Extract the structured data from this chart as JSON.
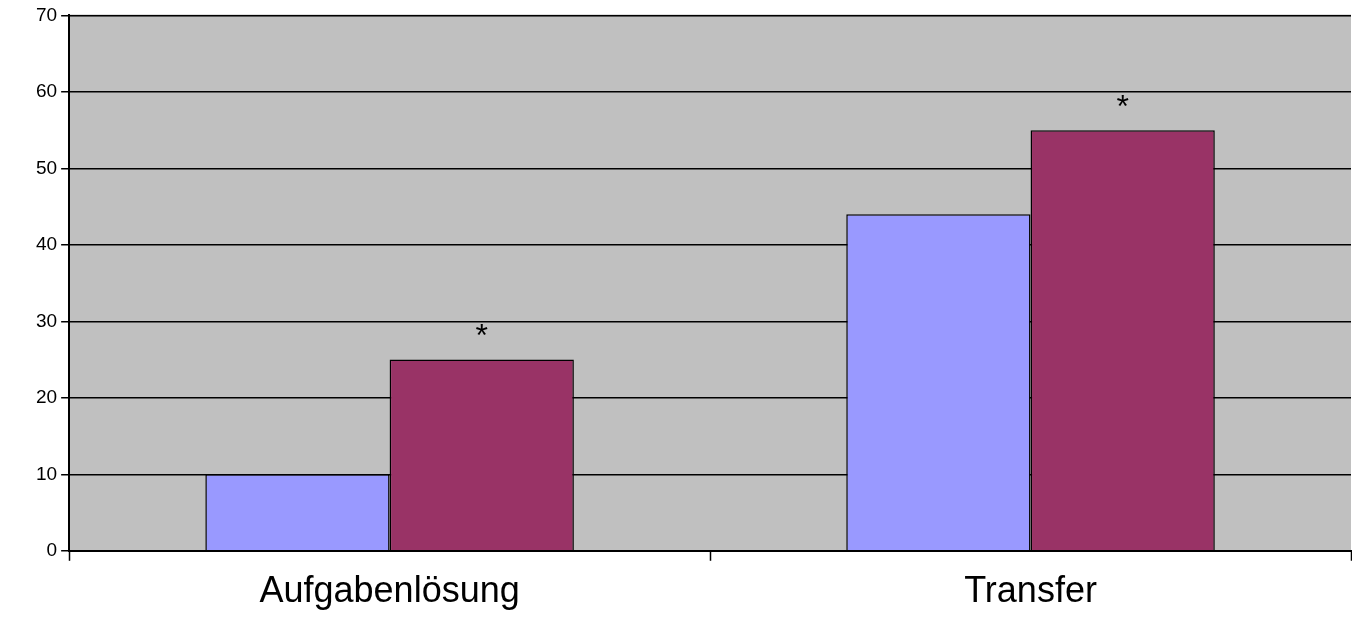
{
  "chart_data": {
    "type": "bar",
    "categories": [
      "Aufgabenlösung",
      "Transfer"
    ],
    "series": [
      {
        "color": "#9999ff",
        "values": [
          10,
          44
        ]
      },
      {
        "color": "#993366",
        "values": [
          25,
          55
        ]
      }
    ],
    "ylim": [
      0,
      70
    ],
    "yticks": [
      0,
      10,
      20,
      30,
      40,
      50,
      60,
      70
    ],
    "grid": "y",
    "legend": false,
    "annotations": [
      {
        "text": "*",
        "x": "Aufgabenlösung",
        "y": 25
      },
      {
        "text": "*",
        "x": "Transfer",
        "y": 55
      }
    ]
  }
}
